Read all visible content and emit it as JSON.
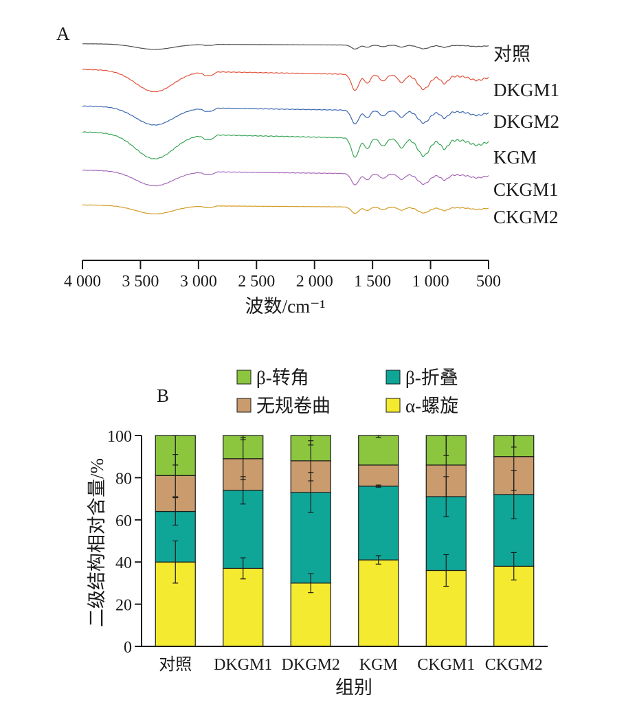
{
  "chart_data": [
    {
      "panel": "A",
      "type": "line",
      "xlabel": "波数/cm⁻¹",
      "xlim": [
        4000,
        500
      ],
      "xticks": [
        {
          "value": 4000,
          "label": "4 000"
        },
        {
          "value": 3500,
          "label": "3 500"
        },
        {
          "value": 3000,
          "label": "3 000"
        },
        {
          "value": 2500,
          "label": "2 500"
        },
        {
          "value": 2000,
          "label": "2 000"
        },
        {
          "value": 1500,
          "label": "1 500"
        },
        {
          "value": 1000,
          "label": "1 000"
        },
        {
          "value": 500,
          "label": "500"
        }
      ],
      "series": [
        {
          "name": "对照",
          "color": "#4d4d4d",
          "depth": 0.25
        },
        {
          "name": "DKGM1",
          "color": "#e2533d",
          "depth": 1.0
        },
        {
          "name": "DKGM2",
          "color": "#3a67b0",
          "depth": 0.85
        },
        {
          "name": "KGM",
          "color": "#3aa556",
          "depth": 1.2
        },
        {
          "name": "CKGM1",
          "color": "#a566b8",
          "depth": 0.7
        },
        {
          "name": "CKGM2",
          "color": "#d39a22",
          "depth": 0.4
        }
      ]
    },
    {
      "panel": "B",
      "type": "bar",
      "stacked": true,
      "xlabel": "组别",
      "ylabel": "二级结构相对含量/%",
      "ylim": [
        0,
        100
      ],
      "yticks": [
        0,
        20,
        40,
        60,
        80,
        100
      ],
      "categories": [
        "对照",
        "DKGM1",
        "DKGM2",
        "KGM",
        "CKGM1",
        "CKGM2"
      ],
      "series": [
        {
          "name": "α-螺旋",
          "color": "#f4ea2f",
          "values": [
            40,
            37,
            30,
            41,
            36,
            38
          ],
          "err": [
            10,
            5,
            4.5,
            2,
            7.5,
            6.5
          ]
        },
        {
          "name": "β-折叠",
          "color": "#0fa698",
          "values": [
            24,
            37,
            43,
            35,
            35,
            34
          ],
          "err": [
            6.5,
            6.5,
            9.5,
            0.5,
            9.5,
            11.5
          ]
        },
        {
          "name": "无规卷曲",
          "color": "#c99b6d",
          "values": [
            17,
            15,
            15,
            10,
            15,
            18
          ],
          "err": [
            10,
            10,
            9.5,
            0,
            15,
            16
          ]
        },
        {
          "name": "β-转角",
          "color": "#8cc63f",
          "values": [
            19,
            11,
            12,
            14,
            14,
            10
          ],
          "err": [
            14,
            2,
            4.5,
            1,
            9.5,
            5.5
          ]
        }
      ],
      "legend": [
        {
          "label": "β-转角",
          "color": "#8cc63f"
        },
        {
          "label": "β-折叠",
          "color": "#0fa698"
        },
        {
          "label": "无规卷曲",
          "color": "#c99b6d"
        },
        {
          "label": "α-螺旋",
          "color": "#f4ea2f"
        }
      ]
    }
  ],
  "panel_labels": {
    "a": "A",
    "b": "B"
  }
}
